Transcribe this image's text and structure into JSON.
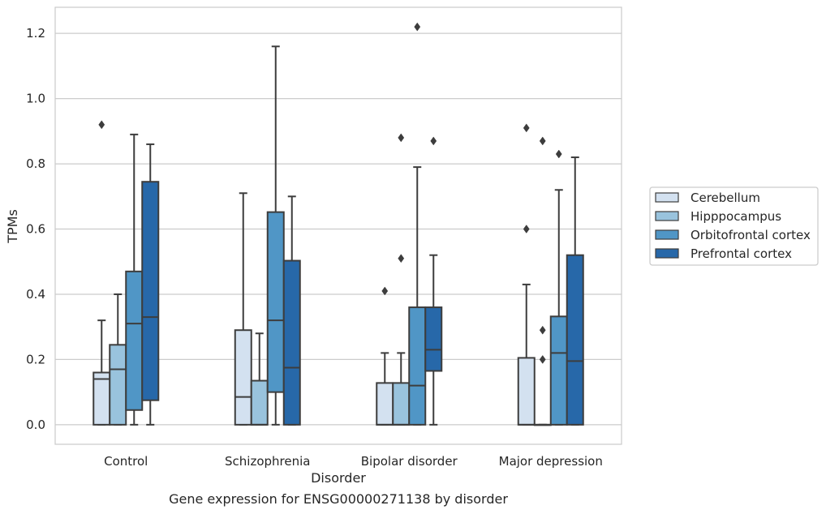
{
  "chart_data": {
    "type": "box",
    "title": "",
    "caption": "Gene expression for ENSG00000271138 by disorder",
    "xlabel": "Disorder",
    "ylabel": "TPMs",
    "ylim": [
      -0.06,
      1.28
    ],
    "yticks": [
      "0.0",
      "0.2",
      "0.4",
      "0.6",
      "0.8",
      "1.0",
      "1.2"
    ],
    "grid": "horizontal",
    "legend_position": "right",
    "categories": [
      "Control",
      "Schizophrenia",
      "Bipolar disorder",
      "Major depression"
    ],
    "series": [
      {
        "name": "Cerebellum",
        "color": "#d3e1f0",
        "boxes": [
          {
            "whislo": 0.0,
            "q1": 0.0,
            "med": 0.14,
            "q3": 0.16,
            "whishi": 0.32,
            "fliers": [
              0.92
            ]
          },
          {
            "whislo": 0.0,
            "q1": 0.0,
            "med": 0.085,
            "q3": 0.29,
            "whishi": 0.71,
            "fliers": []
          },
          {
            "whislo": 0.0,
            "q1": 0.0,
            "med": 0.0,
            "q3": 0.128,
            "whishi": 0.22,
            "fliers": [
              0.41
            ]
          },
          {
            "whislo": 0.0,
            "q1": 0.0,
            "med": 0.0,
            "q3": 0.205,
            "whishi": 0.43,
            "fliers": [
              0.6,
              0.91
            ]
          }
        ]
      },
      {
        "name": "Hipppocampus",
        "color": "#99c3dd",
        "boxes": [
          {
            "whislo": 0.0,
            "q1": 0.0,
            "med": 0.17,
            "q3": 0.245,
            "whishi": 0.4,
            "fliers": []
          },
          {
            "whislo": 0.0,
            "q1": 0.0,
            "med": 0.0,
            "q3": 0.135,
            "whishi": 0.28,
            "fliers": []
          },
          {
            "whislo": 0.0,
            "q1": 0.0,
            "med": 0.0,
            "q3": 0.128,
            "whishi": 0.22,
            "fliers": [
              0.51,
              0.88
            ]
          },
          {
            "whislo": 0.0,
            "q1": 0.0,
            "med": 0.0,
            "q3": 0.0,
            "whishi": 0.0,
            "fliers": [
              0.2,
              0.29,
              0.87
            ]
          }
        ]
      },
      {
        "name": "Orbitofrontal cortex",
        "color": "#5096c6",
        "boxes": [
          {
            "whislo": 0.0,
            "q1": 0.045,
            "med": 0.31,
            "q3": 0.47,
            "whishi": 0.89,
            "fliers": []
          },
          {
            "whislo": 0.0,
            "q1": 0.1,
            "med": 0.32,
            "q3": 0.652,
            "whishi": 1.16,
            "fliers": []
          },
          {
            "whislo": 0.0,
            "q1": 0.0,
            "med": 0.12,
            "q3": 0.36,
            "whishi": 0.79,
            "fliers": [
              1.22
            ]
          },
          {
            "whislo": 0.0,
            "q1": 0.0,
            "med": 0.22,
            "q3": 0.332,
            "whishi": 0.72,
            "fliers": [
              0.83
            ]
          }
        ]
      },
      {
        "name": "Prefrontal cortex",
        "color": "#2768a9",
        "boxes": [
          {
            "whislo": 0.0,
            "q1": 0.075,
            "med": 0.33,
            "q3": 0.745,
            "whishi": 0.86,
            "fliers": []
          },
          {
            "whislo": 0.0,
            "q1": 0.0,
            "med": 0.175,
            "q3": 0.503,
            "whishi": 0.7,
            "fliers": []
          },
          {
            "whislo": 0.0,
            "q1": 0.165,
            "med": 0.23,
            "q3": 0.36,
            "whishi": 0.52,
            "fliers": [
              0.87
            ]
          },
          {
            "whislo": 0.0,
            "q1": 0.0,
            "med": 0.195,
            "q3": 0.52,
            "whishi": 0.82,
            "fliers": []
          }
        ]
      }
    ]
  }
}
